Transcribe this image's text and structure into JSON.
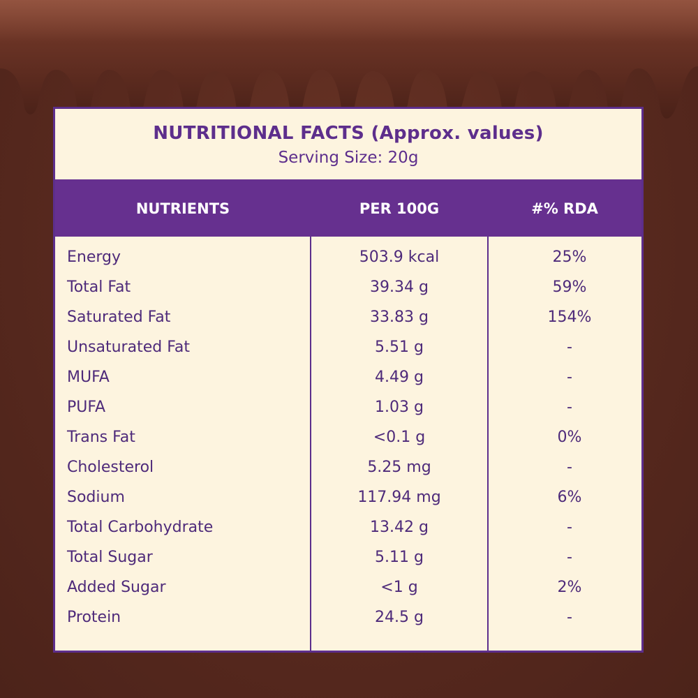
{
  "colors": {
    "background": "#5a2a1f",
    "card": "#fdf4df",
    "accent_purple": "#66308f",
    "text_purple": "#4e2a7a",
    "header_text": "#ffffff"
  },
  "panel": {
    "title": "NUTRITIONAL FACTS (Approx. values)",
    "subtitle": "Serving Size: 20g"
  },
  "table": {
    "headers": [
      "NUTRIENTS",
      "PER 100G",
      "#% RDA"
    ],
    "rows": [
      {
        "nutrient": "Energy",
        "per100g": "503.9 kcal",
        "rda": "25%"
      },
      {
        "nutrient": "Total Fat",
        "per100g": "39.34 g",
        "rda": "59%"
      },
      {
        "nutrient": "Saturated Fat",
        "per100g": "33.83 g",
        "rda": "154%"
      },
      {
        "nutrient": "Unsaturated Fat",
        "per100g": "5.51 g",
        "rda": "-"
      },
      {
        "nutrient": "MUFA",
        "per100g": "4.49 g",
        "rda": "-"
      },
      {
        "nutrient": "PUFA",
        "per100g": "1.03 g",
        "rda": "-"
      },
      {
        "nutrient": "Trans Fat",
        "per100g": "<0.1 g",
        "rda": "0%"
      },
      {
        "nutrient": "Cholesterol",
        "per100g": "5.25 mg",
        "rda": "-"
      },
      {
        "nutrient": "Sodium",
        "per100g": "117.94 mg",
        "rda": "6%"
      },
      {
        "nutrient": "Total Carbohydrate",
        "per100g": "13.42 g",
        "rda": "-"
      },
      {
        "nutrient": "Total Sugar",
        "per100g": "5.11 g",
        "rda": "-"
      },
      {
        "nutrient": "Added Sugar",
        "per100g": "<1 g",
        "rda": "2%"
      },
      {
        "nutrient": "Protein",
        "per100g": "24.5 g",
        "rda": "-"
      }
    ]
  }
}
